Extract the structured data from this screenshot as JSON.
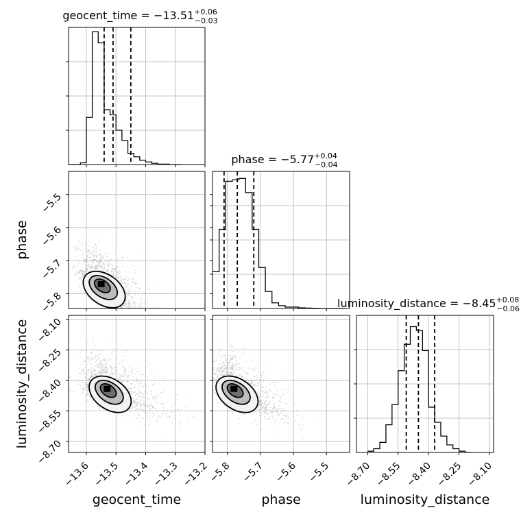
{
  "chart_data": {
    "type": "corner",
    "parameters": [
      "geocent_time",
      "phase",
      "luminosity_distance"
    ],
    "axes": {
      "geocent_time": {
        "label": "geocent_time",
        "range": [
          -13.66,
          -13.2
        ],
        "ticks": [
          -13.6,
          -13.5,
          -13.4,
          -13.3,
          -13.2
        ],
        "tick_labels": [
          "−13.6",
          "−13.5",
          "−13.4",
          "−13.3",
          "−13.2"
        ]
      },
      "phase": {
        "label": "phase",
        "range": [
          -5.845,
          -5.43
        ],
        "ticks": [
          -5.8,
          -5.7,
          -5.6,
          -5.5
        ],
        "tick_labels": [
          "−5.8",
          "−5.7",
          "−5.6",
          "−5.5"
        ]
      },
      "luminosity_distance": {
        "label": "luminosity_distance",
        "range": [
          -8.755,
          -8.08
        ],
        "ticks": [
          -8.7,
          -8.55,
          -8.4,
          -8.25,
          -8.1
        ],
        "tick_labels": [
          "−8.70",
          "−8.55",
          "−8.40",
          "−8.25",
          "−8.10"
        ]
      }
    },
    "marginals": [
      {
        "parameter": "geocent_time",
        "title": {
          "main": "geocent_time = −13.51",
          "sup": "+0.06",
          "sub": "−0.03"
        },
        "median": -13.51,
        "quantiles": [
          -13.54,
          -13.51,
          -13.45
        ],
        "bin_edges": [
          -13.66,
          -13.64,
          -13.62,
          -13.6,
          -13.58,
          -13.56,
          -13.54,
          -13.52,
          -13.5,
          -13.48,
          -13.46,
          -13.44,
          -13.42,
          -13.4,
          -13.38,
          -13.36,
          -13.34,
          -13.32,
          -13.3,
          -13.28
        ],
        "counts": [
          0,
          0,
          2,
          55,
          155,
          142,
          64,
          58,
          40,
          28,
          13,
          9,
          5,
          3,
          1.5,
          0.5,
          0.5,
          0,
          0
        ],
        "ymax": 160
      },
      {
        "parameter": "phase",
        "title": {
          "main": "phase = −5.77",
          "sup": "+0.04",
          "sub": "−0.04"
        },
        "median": -5.77,
        "quantiles": [
          -5.81,
          -5.77,
          -5.72
        ],
        "bin_edges": [
          -5.845,
          -5.825,
          -5.805,
          -5.785,
          -5.765,
          -5.745,
          -5.725,
          -5.705,
          -5.685,
          -5.665,
          -5.645,
          -5.625,
          -5.605,
          -5.585,
          -5.565,
          -5.545,
          -5.525,
          -5.505,
          -5.485,
          -5.465,
          -5.445
        ],
        "counts": [
          26,
          56,
          90,
          91,
          92,
          82,
          56,
          29,
          12,
          4,
          2,
          1,
          1,
          0.5,
          0.3,
          0.2,
          0,
          0,
          0,
          0
        ],
        "ymax": 97
      },
      {
        "parameter": "luminosity_distance",
        "title": {
          "main": "luminosity_distance = −8.45",
          "sup": "+0.08",
          "sub": "−0.06"
        },
        "median": -8.45,
        "quantiles": [
          -8.51,
          -8.45,
          -8.37
        ],
        "bin_edges": [
          -8.7,
          -8.67,
          -8.64,
          -8.61,
          -8.58,
          -8.55,
          -8.52,
          -8.49,
          -8.46,
          -8.43,
          -8.4,
          -8.37,
          -8.34,
          -8.31,
          -8.28,
          -8.25,
          -8.22,
          -8.19
        ],
        "counts": [
          1,
          3,
          8,
          22,
          38,
          65,
          86,
          100,
          97,
          81,
          36,
          24,
          13,
          6,
          3,
          1,
          0
        ],
        "ymax": 109
      }
    ],
    "joints": [
      {
        "x": "geocent_time",
        "y": "phase",
        "center": [
          -13.55,
          -5.77
        ],
        "spread": [
          0.05,
          0.05
        ],
        "correlation": -0.6
      },
      {
        "x": "geocent_time",
        "y": "luminosity_distance",
        "center": [
          -13.53,
          -8.44
        ],
        "spread": [
          0.06,
          0.07
        ],
        "correlation": -0.45
      },
      {
        "x": "phase",
        "y": "luminosity_distance",
        "center": [
          -5.78,
          -8.44
        ],
        "spread": [
          0.05,
          0.07
        ],
        "correlation": -0.55
      }
    ],
    "grid": true
  }
}
